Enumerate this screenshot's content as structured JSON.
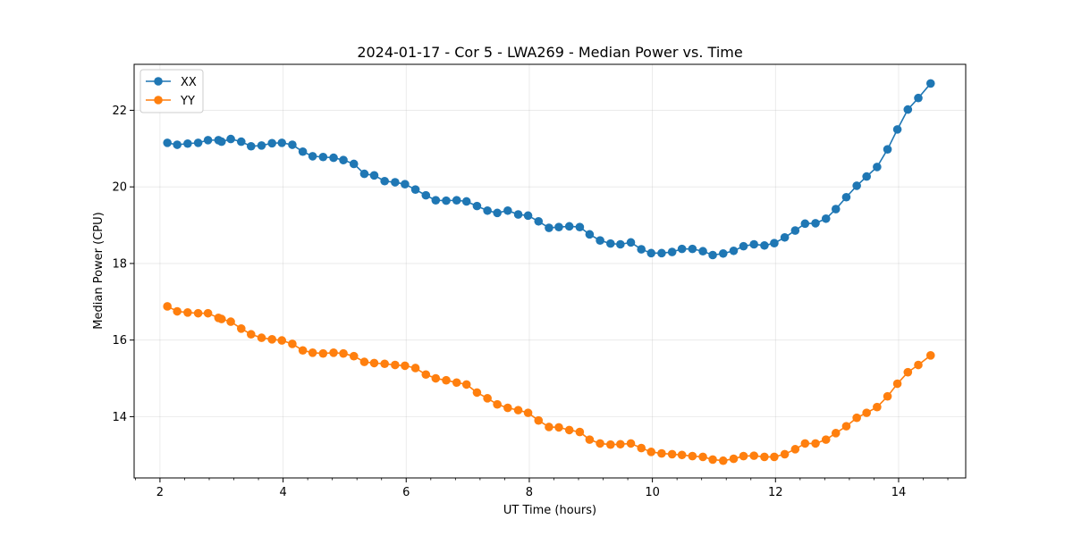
{
  "chart_data": {
    "type": "line",
    "title": "2024-01-17 - Cor 5 - LWA269 - Median Power vs. Time",
    "xlabel": "UT Time (hours)",
    "ylabel": "Median Power (CPU)",
    "xlim": [
      1.58,
      15.09
    ],
    "ylim": [
      12.4,
      23.2
    ],
    "xticks": [
      2,
      4,
      6,
      8,
      10,
      12,
      14
    ],
    "yticks": [
      14,
      16,
      18,
      20,
      22
    ],
    "grid": true,
    "legend_position": "top-left",
    "x": [
      2.12,
      2.28,
      2.45,
      2.62,
      2.78,
      2.95,
      3.0,
      3.15,
      3.32,
      3.48,
      3.65,
      3.82,
      3.98,
      4.15,
      4.32,
      4.48,
      4.65,
      4.82,
      4.98,
      5.15,
      5.32,
      5.48,
      5.65,
      5.82,
      5.98,
      6.15,
      6.32,
      6.48,
      6.65,
      6.82,
      6.98,
      7.15,
      7.32,
      7.48,
      7.65,
      7.82,
      7.98,
      8.15,
      8.32,
      8.48,
      8.65,
      8.82,
      8.98,
      9.15,
      9.32,
      9.48,
      9.65,
      9.82,
      9.98,
      10.15,
      10.32,
      10.48,
      10.65,
      10.82,
      10.98,
      11.15,
      11.32,
      11.48,
      11.65,
      11.82,
      11.98,
      12.15,
      12.32,
      12.48,
      12.65,
      12.82,
      12.98,
      13.15,
      13.32,
      13.48,
      13.65,
      13.82,
      13.98,
      14.15,
      14.32,
      14.52
    ],
    "series": [
      {
        "name": "XX",
        "color": "#1f77b4",
        "values": [
          21.15,
          21.1,
          21.13,
          21.15,
          21.22,
          21.22,
          21.18,
          21.25,
          21.18,
          21.06,
          21.08,
          21.14,
          21.15,
          21.1,
          20.92,
          20.8,
          20.78,
          20.76,
          20.7,
          20.6,
          20.34,
          20.3,
          20.15,
          20.12,
          20.07,
          19.93,
          19.78,
          19.65,
          19.64,
          19.65,
          19.62,
          19.5,
          19.38,
          19.32,
          19.38,
          19.28,
          19.25,
          19.1,
          18.93,
          18.95,
          18.97,
          18.95,
          18.76,
          18.6,
          18.52,
          18.5,
          18.55,
          18.37,
          18.27,
          18.27,
          18.3,
          18.38,
          18.38,
          18.32,
          18.22,
          18.26,
          18.33,
          18.45,
          18.5,
          18.47,
          18.53,
          18.68,
          18.86,
          19.04,
          19.05,
          19.17,
          19.42,
          19.73,
          20.03,
          20.27,
          20.52,
          20.98,
          21.5,
          22.02,
          22.32,
          22.7
        ]
      },
      {
        "name": "YY",
        "color": "#ff7f0e",
        "values": [
          16.88,
          16.75,
          16.72,
          16.7,
          16.7,
          16.58,
          16.55,
          16.48,
          16.3,
          16.15,
          16.06,
          16.02,
          15.99,
          15.9,
          15.73,
          15.67,
          15.65,
          15.67,
          15.65,
          15.58,
          15.43,
          15.4,
          15.38,
          15.35,
          15.33,
          15.27,
          15.1,
          15.0,
          14.95,
          14.89,
          14.84,
          14.63,
          14.48,
          14.32,
          14.23,
          14.17,
          14.1,
          13.9,
          13.73,
          13.72,
          13.65,
          13.6,
          13.4,
          13.3,
          13.27,
          13.28,
          13.3,
          13.18,
          13.08,
          13.04,
          13.02,
          13.0,
          12.97,
          12.95,
          12.88,
          12.85,
          12.9,
          12.97,
          12.98,
          12.95,
          12.95,
          13.02,
          13.15,
          13.3,
          13.3,
          13.4,
          13.57,
          13.75,
          13.97,
          14.1,
          14.25,
          14.53,
          14.86,
          15.16,
          15.35,
          15.6
        ]
      }
    ]
  }
}
